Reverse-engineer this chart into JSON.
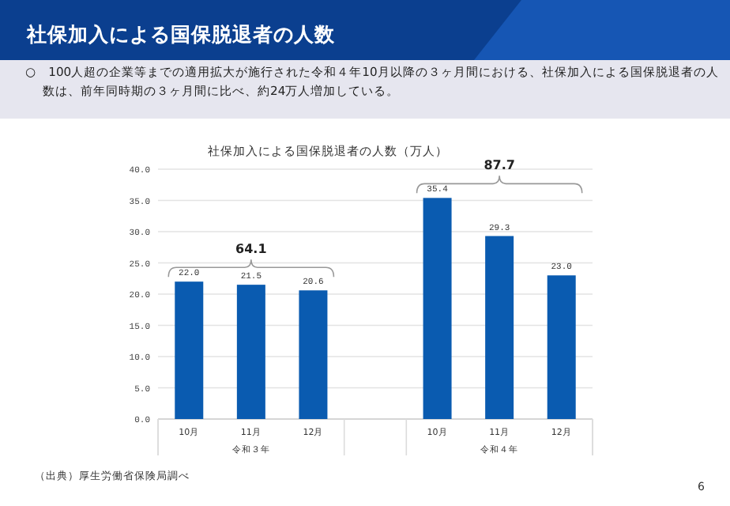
{
  "chart_data": {
    "type": "bar",
    "title": "社保加入による国保脱退者の人数",
    "subtitle": "○　100人超の企業等までの適用拡大が施行された令和４年10月以降の３ヶ月間における、社保加入による国保脱退者の人数は、前年同時期の３ヶ月間に比べ、約24万人増加している。",
    "categories": [
      "10月",
      "11月",
      "12月",
      null,
      "10月",
      "11月",
      "12月"
    ],
    "series": [
      {
        "color": "#0a5bb0",
        "values": [
          22.0,
          21.5,
          20.6,
          null,
          35.4,
          29.3,
          23.0
        ],
        "value_labels": [
          "22.0",
          "21.5",
          "20.6",
          null,
          "35.4",
          "29.3",
          "23.0"
        ]
      }
    ],
    "ylim": [
      0,
      40
    ],
    "yticks": [
      {
        "value": 0,
        "label": "0.0"
      },
      {
        "value": 5,
        "label": "5.0"
      },
      {
        "value": 10,
        "label": "10.0"
      },
      {
        "value": 15,
        "label": "15.0"
      },
      {
        "value": 20,
        "label": "20.0"
      },
      {
        "value": 25,
        "label": "25.0"
      },
      {
        "value": 30,
        "label": "30.0"
      },
      {
        "value": 35,
        "label": "35.0"
      },
      {
        "value": 40,
        "label": "40.0"
      }
    ],
    "grid": "y",
    "annotations": [
      "社保加入による国保脱退者の人数（万人）",
      "64.1",
      "87.7",
      "令和３年",
      "令和４年",
      "（出典）厚生労働省保険局調べ",
      "6"
    ]
  }
}
